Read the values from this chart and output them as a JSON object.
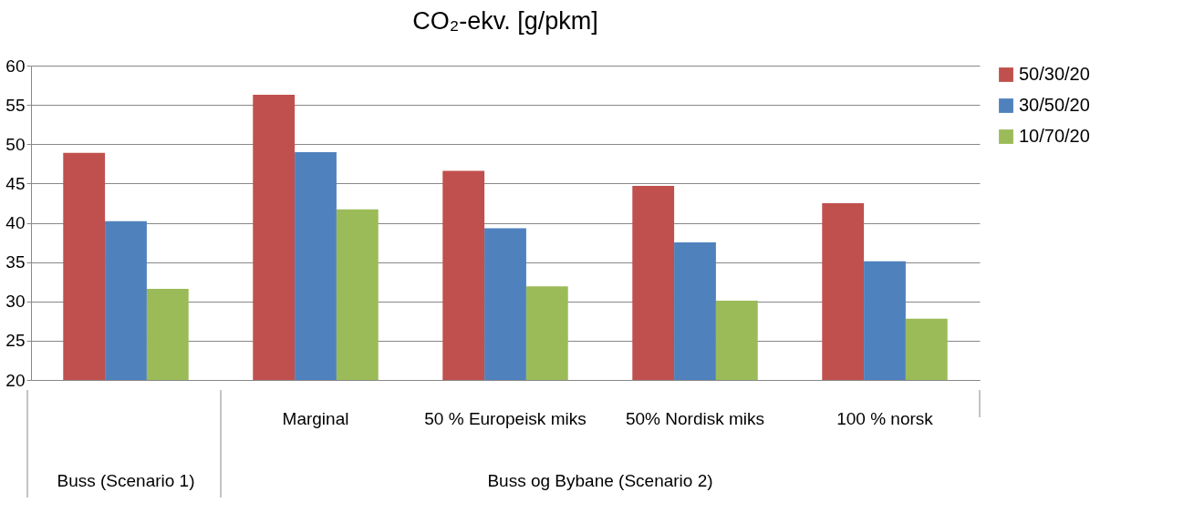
{
  "chart_data": {
    "type": "bar",
    "title": "CO₂-ekv. [g/pkm]",
    "categories": [
      null,
      "Marginal",
      "50 % Europeisk miks",
      "50% Nordisk miks",
      "100 % norsk"
    ],
    "series": [
      {
        "name": "50/30/20",
        "color": "#c0504d",
        "values": [
          48.9,
          56.3,
          46.6,
          44.7,
          42.5
        ]
      },
      {
        "name": "30/50/20",
        "color": "#4f81bd",
        "values": [
          40.2,
          49.0,
          39.3,
          37.5,
          35.1
        ]
      },
      {
        "name": "10/70/20",
        "color": "#9bbb59",
        "values": [
          31.6,
          41.7,
          31.9,
          30.1,
          27.8
        ]
      }
    ],
    "annotations": [
      "Buss (Scenario 1)",
      "Buss og Bybane (Scenario 2)"
    ],
    "ylim": [
      20,
      60
    ],
    "yticks": [
      20,
      25,
      30,
      35,
      40,
      45,
      50,
      55,
      60
    ],
    "grid": "y",
    "legend": "right"
  }
}
